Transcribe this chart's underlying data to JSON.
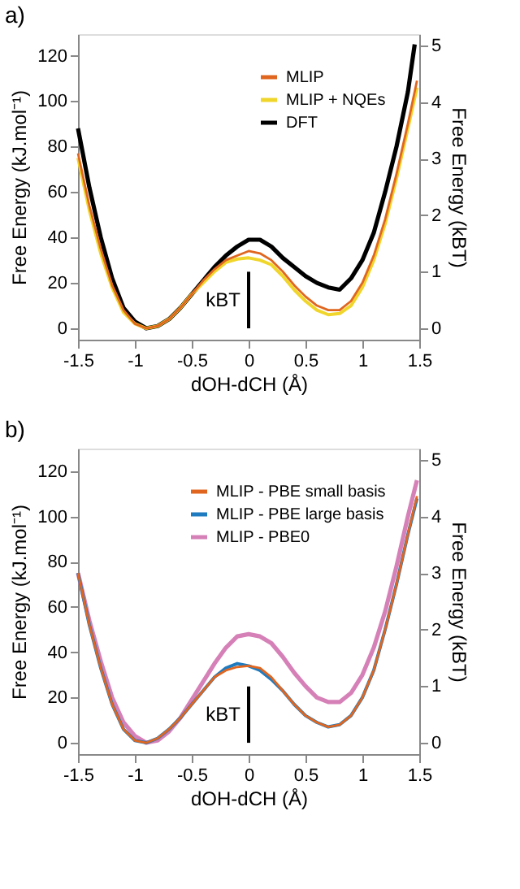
{
  "chart_data": [
    {
      "type": "line",
      "title": "a)",
      "xlabel": "dOH-dCH (Å)",
      "ylabel": "Free Energy (kJ.mol⁻¹)",
      "y2label": "Free Energy (kBT)",
      "xlim": [
        -1.5,
        1.5
      ],
      "xticks": [
        -1.5,
        -1,
        -0.5,
        0,
        0.5,
        1,
        1.5
      ],
      "ylim": [
        -5,
        129.5
      ],
      "yticks": [
        0,
        20,
        40,
        60,
        80,
        100,
        120
      ],
      "y2lim": [
        -0.2,
        5.2
      ],
      "y2ticks": [
        0,
        1,
        2,
        3,
        4,
        5
      ],
      "legend": "top right",
      "grid": false,
      "marker": "none",
      "line_style": "solid",
      "annotations": [
        "kBT"
      ],
      "series": [
        {
          "name": "MLIP",
          "color": "#e0661f",
          "x": [
            -1.5,
            -1.4,
            -1.3,
            -1.2,
            -1.1,
            -1.0,
            -0.9,
            -0.8,
            -0.7,
            -0.6,
            -0.5,
            -0.4,
            -0.3,
            -0.2,
            -0.1,
            0,
            0.1,
            0.2,
            0.3,
            0.4,
            0.5,
            0.6,
            0.7,
            0.8,
            0.9,
            1.0,
            1.1,
            1.2,
            1.3,
            1.4,
            1.48
          ],
          "values": [
            77,
            54,
            35,
            19,
            8,
            2,
            0,
            1,
            4,
            9,
            15,
            21,
            26,
            30,
            32,
            34,
            33,
            30,
            25,
            19,
            14,
            10,
            8,
            8,
            12,
            20,
            32,
            48,
            68,
            90,
            109
          ]
        },
        {
          "name": "MLIP + NQEs",
          "color": "#f0d52a",
          "x": [
            -1.5,
            -1.4,
            -1.3,
            -1.2,
            -1.1,
            -1.0,
            -0.9,
            -0.8,
            -0.7,
            -0.6,
            -0.5,
            -0.4,
            -0.3,
            -0.2,
            -0.1,
            0,
            0.1,
            0.2,
            0.3,
            0.4,
            0.5,
            0.6,
            0.7,
            0.8,
            0.9,
            1.0,
            1.1,
            1.2,
            1.3,
            1.4,
            1.48
          ],
          "values": [
            75,
            52,
            33,
            18,
            7,
            2,
            0,
            1,
            4,
            9,
            15,
            20,
            25,
            29,
            30.5,
            31,
            30,
            28,
            23,
            17,
            12,
            8,
            6,
            6.5,
            10,
            18,
            30,
            46,
            66,
            88,
            106
          ]
        },
        {
          "name": "DFT",
          "color": "#000000",
          "x": [
            -1.5,
            -1.4,
            -1.3,
            -1.2,
            -1.1,
            -1.0,
            -0.9,
            -0.8,
            -0.7,
            -0.6,
            -0.5,
            -0.4,
            -0.3,
            -0.2,
            -0.1,
            0,
            0.1,
            0.2,
            0.3,
            0.4,
            0.5,
            0.6,
            0.7,
            0.8,
            0.9,
            1.0,
            1.1,
            1.2,
            1.3,
            1.4,
            1.46
          ],
          "values": [
            88,
            62,
            40,
            22,
            9,
            3,
            0,
            1,
            4,
            9,
            15,
            21,
            27,
            32,
            36,
            39,
            39,
            36,
            31,
            27,
            23,
            20,
            18,
            17,
            22,
            30,
            42,
            60,
            80,
            104,
            125
          ]
        },
        {
          "type": "line",
          "color": "#000000",
          "x": [
            0,
            0
          ],
          "values": [
            0,
            24.9
          ]
        }
      ]
    },
    {
      "type": "line",
      "title": "b)",
      "xlabel": "dOH-dCH (Å)",
      "ylabel": "Free Energy (kJ.mol⁻¹)",
      "y2label": "Free Energy (kBT)",
      "xlim": [
        -1.5,
        1.5
      ],
      "xticks": [
        -1.5,
        -1,
        -0.5,
        0,
        0.5,
        1,
        1.5
      ],
      "ylim": [
        -5,
        130
      ],
      "yticks": [
        0,
        20,
        40,
        60,
        80,
        100,
        120
      ],
      "y2lim": [
        -0.2,
        5.2
      ],
      "y2ticks": [
        0,
        1,
        2,
        3,
        4,
        5
      ],
      "legend": "top right",
      "grid": false,
      "marker": "none",
      "line_style": "solid",
      "annotations": [
        "kBT"
      ],
      "series": [
        {
          "name": "MLIP - PBE small basis",
          "color": "#e0661f",
          "x": [
            -1.5,
            -1.4,
            -1.3,
            -1.2,
            -1.1,
            -1.0,
            -0.9,
            -0.8,
            -0.7,
            -0.6,
            -0.5,
            -0.4,
            -0.3,
            -0.2,
            -0.1,
            0,
            0.1,
            0.2,
            0.3,
            0.4,
            0.5,
            0.6,
            0.7,
            0.8,
            0.9,
            1.0,
            1.1,
            1.2,
            1.3,
            1.4,
            1.48
          ],
          "values": [
            75,
            52,
            33,
            17,
            6,
            1,
            0,
            2,
            6,
            11,
            17,
            23,
            29,
            32,
            33.5,
            34,
            33,
            29,
            23,
            17,
            12,
            9,
            7,
            8,
            12,
            20,
            32,
            50,
            70,
            92,
            109
          ]
        },
        {
          "name": "MLIP - PBE large basis",
          "color": "#1f7bbf",
          "x": [
            -1.5,
            -1.4,
            -1.3,
            -1.2,
            -1.1,
            -1.0,
            -0.9,
            -0.8,
            -0.7,
            -0.6,
            -0.5,
            -0.4,
            -0.3,
            -0.2,
            -0.1,
            0,
            0.1,
            0.2,
            0.3,
            0.4,
            0.5,
            0.6,
            0.7,
            0.8,
            0.9,
            1.0,
            1.1,
            1.2,
            1.3,
            1.4,
            1.48
          ],
          "values": [
            75,
            52,
            33,
            17,
            6,
            1,
            0,
            2,
            6,
            11,
            17,
            23,
            29,
            33,
            35,
            34,
            32,
            28,
            23,
            17,
            12,
            9,
            7,
            8,
            12,
            20,
            32,
            50,
            70,
            92,
            108
          ]
        },
        {
          "name": "MLIP - PBE0",
          "color": "#d680b8",
          "x": [
            -1.5,
            -1.4,
            -1.3,
            -1.2,
            -1.1,
            -1.0,
            -0.9,
            -0.8,
            -0.7,
            -0.6,
            -0.5,
            -0.4,
            -0.3,
            -0.2,
            -0.1,
            0,
            0.1,
            0.2,
            0.3,
            0.4,
            0.5,
            0.6,
            0.7,
            0.8,
            0.9,
            1.0,
            1.1,
            1.2,
            1.3,
            1.4,
            1.48
          ],
          "values": [
            75,
            54,
            36,
            20,
            9,
            3,
            0,
            1,
            5,
            11,
            19,
            27,
            35,
            42,
            47,
            48,
            47,
            44,
            38,
            31,
            25,
            20,
            18,
            18,
            22,
            30,
            42,
            58,
            78,
            100,
            116
          ]
        },
        {
          "type": "line",
          "color": "#000000",
          "x": [
            0,
            0
          ],
          "values": [
            0,
            24.9
          ]
        }
      ]
    }
  ]
}
